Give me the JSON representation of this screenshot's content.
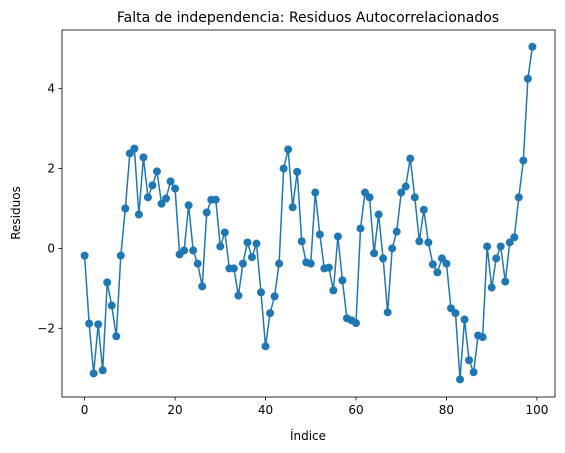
{
  "chart_data": {
    "type": "line",
    "title": "Falta de independencia: Residuos Autocorrelacionados",
    "xlabel": "Índice",
    "ylabel": "Residuos",
    "xlim": [
      -5,
      104
    ],
    "ylim": [
      -3.72,
      5.47
    ],
    "xticks": [
      0,
      20,
      40,
      60,
      80,
      100
    ],
    "yticks": [
      -2,
      0,
      2,
      4
    ],
    "grid": false,
    "legend": "none",
    "series": [
      {
        "color": "#1f77b4",
        "marker": "circle",
        "x": [
          0,
          1,
          2,
          3,
          4,
          5,
          6,
          7,
          8,
          9,
          10,
          11,
          12,
          13,
          14,
          15,
          16,
          17,
          18,
          19,
          20,
          21,
          22,
          23,
          24,
          25,
          26,
          27,
          28,
          29,
          30,
          31,
          32,
          33,
          34,
          35,
          36,
          37,
          38,
          39,
          40,
          41,
          42,
          43,
          44,
          45,
          46,
          47,
          48,
          49,
          50,
          51,
          52,
          53,
          54,
          55,
          56,
          57,
          58,
          59,
          60,
          61,
          62,
          63,
          64,
          65,
          66,
          67,
          68,
          69,
          70,
          71,
          72,
          73,
          74,
          75,
          76,
          77,
          78,
          79,
          80,
          81,
          82,
          83,
          84,
          85,
          86,
          87,
          88,
          89,
          90,
          91,
          92,
          93,
          94,
          95,
          96,
          97,
          98,
          99
        ],
        "y": [
          -0.18,
          -1.88,
          -3.13,
          -1.9,
          -3.05,
          -0.85,
          -1.43,
          -2.2,
          -0.18,
          1.0,
          2.38,
          2.5,
          0.85,
          2.28,
          1.28,
          1.58,
          1.93,
          1.12,
          1.25,
          1.68,
          1.5,
          -0.15,
          -0.05,
          1.08,
          -0.05,
          -0.38,
          -0.95,
          0.9,
          1.22,
          1.22,
          0.05,
          0.4,
          -0.5,
          -0.5,
          -1.18,
          -0.38,
          0.15,
          -0.22,
          0.12,
          -1.1,
          -2.45,
          -1.62,
          -1.2,
          -0.38,
          2.0,
          2.48,
          1.03,
          1.92,
          0.18,
          -0.35,
          -0.38,
          1.4,
          0.35,
          -0.5,
          -0.48,
          -1.05,
          0.3,
          -0.8,
          -1.75,
          -1.8,
          -1.87,
          0.5,
          1.4,
          1.28,
          -0.12,
          0.85,
          -0.25,
          -1.6,
          0.0,
          0.42,
          1.4,
          1.55,
          2.25,
          1.28,
          0.18,
          0.97,
          0.15,
          -0.4,
          -0.6,
          -0.25,
          -0.38,
          -1.5,
          -1.62,
          -3.28,
          -1.78,
          -2.8,
          -3.1,
          -2.18,
          -2.22,
          0.05,
          -0.98,
          -0.25,
          0.05,
          -0.83,
          0.15,
          0.28,
          1.28,
          2.2,
          4.25,
          5.05
        ]
      }
    ]
  }
}
